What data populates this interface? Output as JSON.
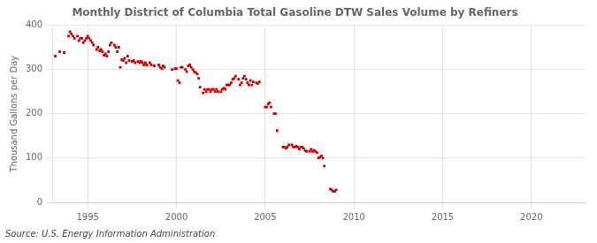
{
  "chart_data": {
    "type": "scatter",
    "title": "Monthly District of Columbia Total Gasoline DTW Sales Volume by Refiners",
    "ylabel": "Thousand Gallons per Day",
    "annotations": [
      "Source: U.S. Energy Information Administration"
    ],
    "color": "#cc0000",
    "marker": "square",
    "grid": true,
    "xlim": [
      1993.0,
      2023.0
    ],
    "ylim": [
      0,
      400
    ],
    "xticks": [
      1995,
      2000,
      2005,
      2010,
      2015,
      2020
    ],
    "yticks": [
      0,
      100,
      200,
      300,
      400
    ],
    "x": [
      1993.17,
      1993.42,
      1993.67,
      1993.92,
      1994.0,
      1994.08,
      1994.17,
      1994.25,
      1994.42,
      1994.5,
      1994.58,
      1994.67,
      1994.75,
      1994.83,
      1994.92,
      1995.0,
      1995.08,
      1995.17,
      1995.25,
      1995.33,
      1995.5,
      1995.58,
      1995.67,
      1995.75,
      1995.83,
      1995.92,
      1996.0,
      1996.08,
      1996.17,
      1996.25,
      1996.33,
      1996.5,
      1996.58,
      1996.67,
      1996.75,
      1996.83,
      1996.92,
      1997.0,
      1997.08,
      1997.17,
      1997.25,
      1997.33,
      1997.5,
      1997.58,
      1997.67,
      1997.83,
      1997.92,
      1998.0,
      1998.08,
      1998.17,
      1998.25,
      1998.33,
      1998.5,
      1998.58,
      1998.75,
      1999.0,
      1999.08,
      1999.17,
      1999.25,
      1999.33,
      1999.75,
      1999.92,
      2000.0,
      2000.08,
      2000.17,
      2000.25,
      2000.33,
      2000.5,
      2000.58,
      2000.67,
      2000.75,
      2000.83,
      2000.92,
      2001.0,
      2001.08,
      2001.17,
      2001.25,
      2001.33,
      2001.5,
      2001.58,
      2001.67,
      2001.75,
      2001.83,
      2001.92,
      2002.0,
      2002.08,
      2002.17,
      2002.25,
      2002.33,
      2002.5,
      2002.58,
      2002.67,
      2002.75,
      2002.83,
      2002.92,
      2003.0,
      2003.08,
      2003.17,
      2003.25,
      2003.33,
      2003.5,
      2003.58,
      2003.67,
      2003.75,
      2003.83,
      2003.92,
      2004.0,
      2004.08,
      2004.17,
      2004.25,
      2004.33,
      2004.5,
      2004.58,
      2004.67,
      2005.0,
      2005.08,
      2005.17,
      2005.25,
      2005.33,
      2005.5,
      2005.58,
      2005.67,
      2006.0,
      2006.08,
      2006.17,
      2006.25,
      2006.33,
      2006.5,
      2006.58,
      2006.67,
      2006.75,
      2006.83,
      2006.92,
      2007.0,
      2007.08,
      2007.17,
      2007.25,
      2007.33,
      2007.5,
      2007.58,
      2007.67,
      2007.75,
      2007.83,
      2007.92,
      2008.0,
      2008.08,
      2008.17,
      2008.25,
      2008.33,
      2008.67,
      2008.75,
      2008.83,
      2008.92,
      2009.0
    ],
    "values": [
      330,
      340,
      338,
      375,
      385,
      380,
      375,
      370,
      375,
      365,
      370,
      370,
      360,
      365,
      370,
      375,
      370,
      365,
      360,
      355,
      345,
      350,
      342,
      345,
      340,
      332,
      335,
      330,
      340,
      355,
      360,
      355,
      350,
      340,
      350,
      305,
      322,
      320,
      325,
      315,
      330,
      320,
      318,
      320,
      315,
      318,
      315,
      318,
      315,
      310,
      315,
      310,
      315,
      310,
      308,
      310,
      305,
      302,
      308,
      305,
      300,
      302,
      302,
      275,
      270,
      305,
      305,
      300,
      295,
      308,
      310,
      305,
      300,
      295,
      293,
      290,
      280,
      260,
      247,
      255,
      250,
      255,
      255,
      250,
      255,
      255,
      250,
      255,
      250,
      250,
      255,
      258,
      255,
      265,
      265,
      265,
      270,
      278,
      280,
      285,
      278,
      265,
      270,
      280,
      285,
      278,
      270,
      265,
      275,
      265,
      272,
      270,
      268,
      272,
      215,
      215,
      222,
      225,
      215,
      200,
      200,
      162,
      125,
      125,
      122,
      125,
      130,
      130,
      125,
      125,
      127,
      125,
      120,
      125,
      125,
      122,
      117,
      115,
      115,
      120,
      115,
      118,
      115,
      112,
      100,
      102,
      105,
      100,
      82,
      30,
      28,
      25,
      25,
      28
    ]
  }
}
